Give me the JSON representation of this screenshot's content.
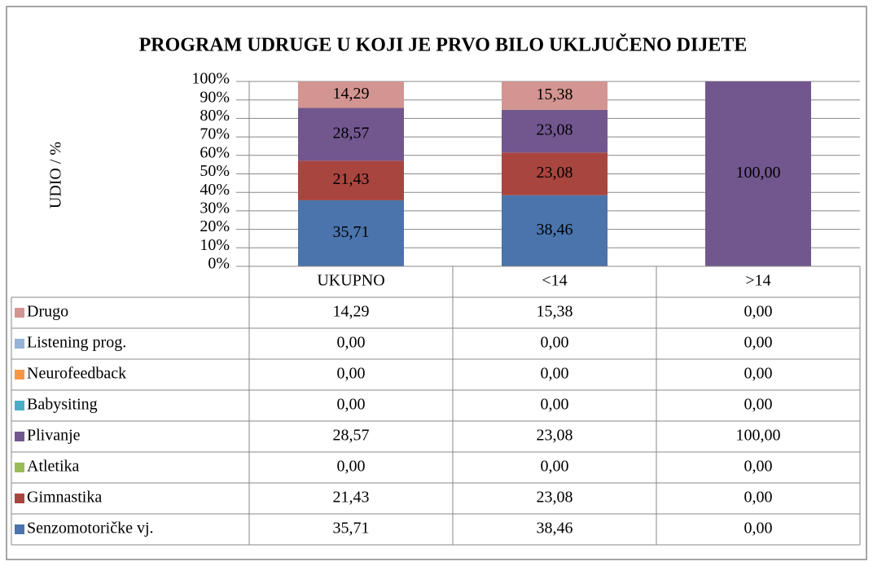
{
  "chart_data": {
    "type": "stacked_bar",
    "title": "PROGRAM UDRUGE U KOJI JE PRVO BILO UKLJUČENO DIJETE",
    "y_label": "UDIO  / %",
    "categories": [
      "UKUPNO",
      "<14",
      ">14"
    ],
    "ylim": [
      0,
      100
    ],
    "yticks": [
      {
        "value": 0,
        "label": "0%"
      },
      {
        "value": 10,
        "label": "10%"
      },
      {
        "value": 20,
        "label": "20%"
      },
      {
        "value": 30,
        "label": "30%"
      },
      {
        "value": 40,
        "label": "40%"
      },
      {
        "value": 50,
        "label": "50%"
      },
      {
        "value": 60,
        "label": "60%"
      },
      {
        "value": 70,
        "label": "70%"
      },
      {
        "value": 80,
        "label": "80%"
      },
      {
        "value": 90,
        "label": "90%"
      },
      {
        "value": 100,
        "label": "100%"
      }
    ],
    "grid": true,
    "series": [
      {
        "name": "Senzomotoričke vj.",
        "color": "#4a74ab",
        "values": [
          35.71,
          38.46,
          0
        ],
        "value_labels": [
          "35,71",
          "38,46",
          "0,00"
        ]
      },
      {
        "name": "Gimnastika",
        "color": "#a9453f",
        "values": [
          21.43,
          23.08,
          0
        ],
        "value_labels": [
          "21,43",
          "23,08",
          "0,00"
        ]
      },
      {
        "name": "Atletika",
        "color": "#9bbb59",
        "values": [
          0,
          0,
          0
        ],
        "value_labels": [
          "0,00",
          "0,00",
          "0,00"
        ]
      },
      {
        "name": "Plivanje",
        "color": "#72578f",
        "values": [
          28.57,
          23.08,
          100
        ],
        "value_labels": [
          "28,57",
          "23,08",
          "100,00"
        ]
      },
      {
        "name": "Babysiting",
        "color": "#4bacc6",
        "values": [
          0,
          0,
          0
        ],
        "value_labels": [
          "0,00",
          "0,00",
          "0,00"
        ]
      },
      {
        "name": "Neurofeedback",
        "color": "#f79646",
        "values": [
          0,
          0,
          0
        ],
        "value_labels": [
          "0,00",
          "0,00",
          "0,00"
        ]
      },
      {
        "name": "Listening prog.",
        "color": "#95b3d7",
        "values": [
          0,
          0,
          0
        ],
        "value_labels": [
          "0,00",
          "0,00",
          "0,00"
        ]
      },
      {
        "name": "Drugo",
        "color": "#d39591",
        "values": [
          14.29,
          15.38,
          0
        ],
        "value_labels": [
          "14,29",
          "15,38",
          "0,00"
        ]
      }
    ]
  }
}
